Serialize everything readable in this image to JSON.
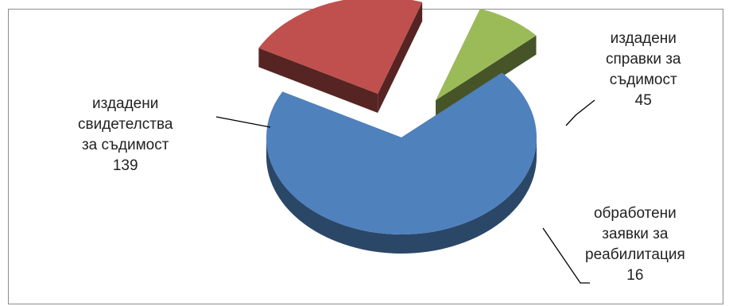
{
  "chart_data": {
    "type": "pie",
    "title": "",
    "labels": [
      "издадени свидетелства за съдимост",
      "издадени справки за съдимост",
      "обработени заявки за реабилитация"
    ],
    "values": [
      139,
      45,
      16
    ],
    "colors": [
      "#4f81bd",
      "#c0504d",
      "#9bbb59"
    ],
    "label_lines": {
      "0": [
        "издадени",
        "свидетелства",
        "за съдимост",
        "139"
      ],
      "1": [
        "издадени",
        "справки за",
        "съдимост",
        "45"
      ],
      "2": [
        "обработени",
        "заявки за",
        "реабилитация",
        "16"
      ]
    }
  }
}
